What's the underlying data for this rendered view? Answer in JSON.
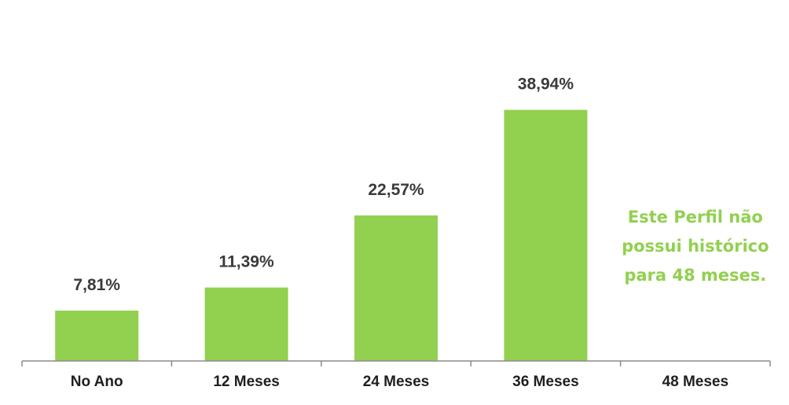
{
  "chart_data": {
    "type": "bar",
    "categories": [
      "No Ano",
      "12 Meses",
      "24 Meses",
      "36 Meses",
      "48 Meses"
    ],
    "values": [
      7.81,
      11.39,
      22.57,
      38.94,
      null
    ],
    "value_labels": [
      "7,81%",
      "11,39%",
      "22,57%",
      "38,94%",
      ""
    ],
    "unit": "%",
    "bar_color": "#92d050",
    "ylim": [
      0,
      45
    ],
    "grid": false,
    "annotation": {
      "category": "48 Meses",
      "lines": [
        "Este Perfil não",
        "possui histórico",
        "para 48 meses."
      ],
      "color": "#92d050"
    }
  }
}
